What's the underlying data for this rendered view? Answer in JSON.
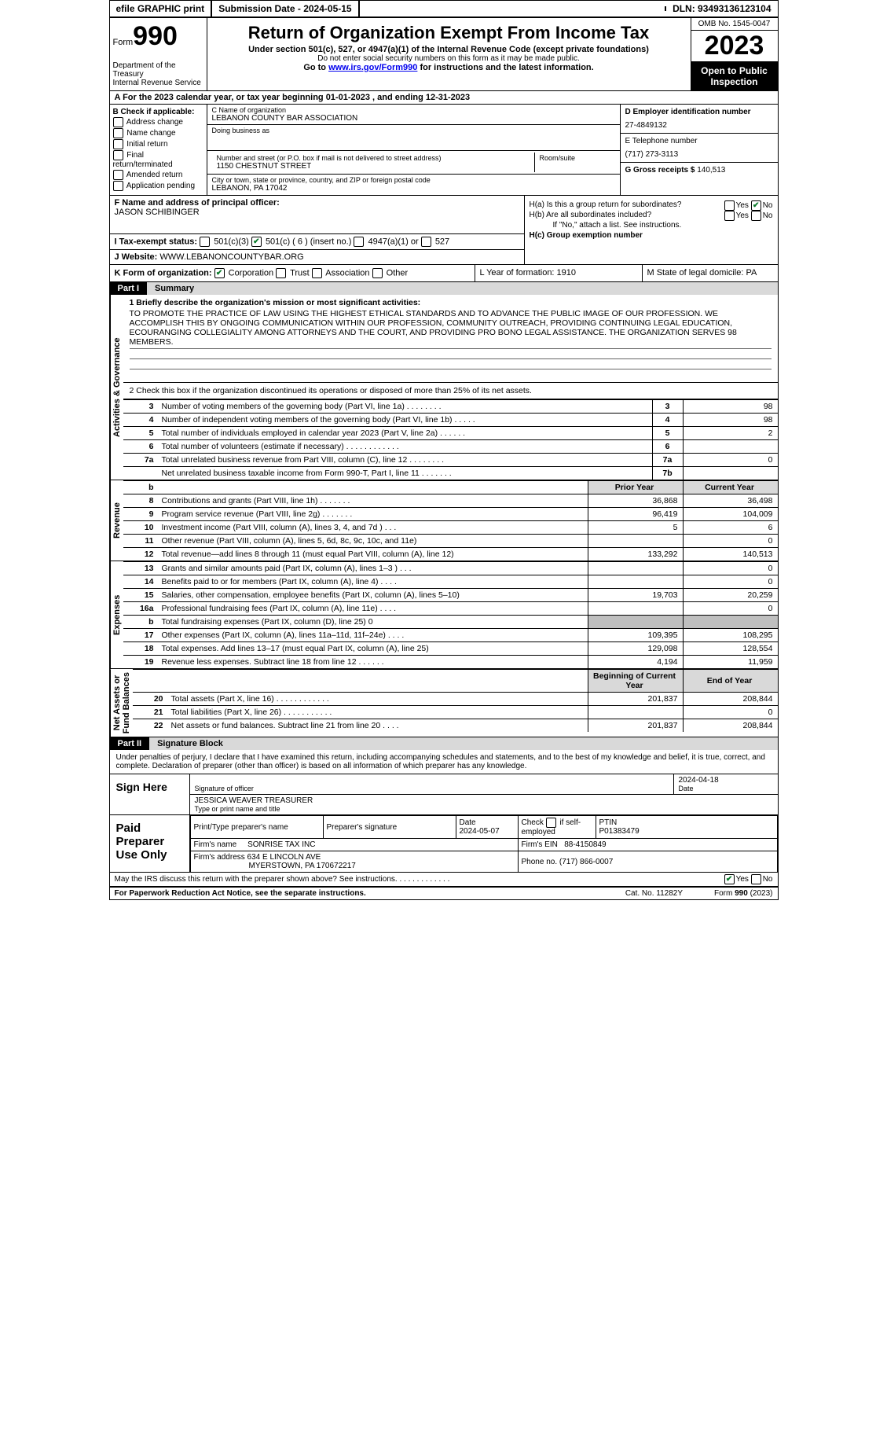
{
  "top": {
    "efile": "efile GRAPHIC print",
    "sub_label": "Submission Date - 2024-05-15",
    "dln": "DLN: 93493136123104"
  },
  "header": {
    "form_word": "Form",
    "form_num": "990",
    "dept": "Department of the Treasury\nInternal Revenue Service",
    "title": "Return of Organization Exempt From Income Tax",
    "sub": "Under section 501(c), 527, or 4947(a)(1) of the Internal Revenue Code (except private foundations)",
    "sub2": "Do not enter social security numbers on this form as it may be made public.",
    "sub3_pre": "Go to ",
    "sub3_link": "www.irs.gov/Form990",
    "sub3_post": " for instructions and the latest information.",
    "omb": "OMB No. 1545-0047",
    "year": "2023",
    "inspection": "Open to Public Inspection"
  },
  "line_a": "A  For the 2023 calendar year, or tax year beginning 01-01-2023    , and ending 12-31-2023",
  "col_b": {
    "header": "B Check if applicable:",
    "items": [
      "Address change",
      "Name change",
      "Initial return",
      "Final return/terminated",
      "Amended return",
      "Application pending"
    ]
  },
  "col_c": {
    "name_lbl": "C Name of organization",
    "name": "LEBANON COUNTY BAR ASSOCIATION",
    "dba_lbl": "Doing business as",
    "street_lbl": "Number and street (or P.O. box if mail is not delivered to street address)",
    "street": "1150 CHESTNUT STREET",
    "room_lbl": "Room/suite",
    "city_lbl": "City or town, state or province, country, and ZIP or foreign postal code",
    "city": "LEBANON, PA   17042"
  },
  "col_de": {
    "ein_lbl": "D Employer identification number",
    "ein": "27-4849132",
    "phone_lbl": "E Telephone number",
    "phone": "(717) 273-3113",
    "gross_lbl": "G Gross receipts $",
    "gross": "140,513"
  },
  "f": {
    "lbl": "F  Name and address of principal officer:",
    "name": "JASON SCHIBINGER"
  },
  "tax_status": {
    "lbl": "I   Tax-exempt status:",
    "opt1": "501(c)(3)",
    "opt2": "501(c) ( 6 ) (insert no.)",
    "opt3": "4947(a)(1) or",
    "opt4": "527"
  },
  "website": {
    "lbl": "J   Website:",
    "val": "WWW.LEBANONCOUNTYBAR.ORG"
  },
  "h": {
    "ha": "H(a)  Is this a group return for subordinates?",
    "hb": "H(b)  Are all subordinates included?",
    "hb_note": "If \"No,\" attach a list. See instructions.",
    "hc": "H(c)  Group exemption number",
    "yes": "Yes",
    "no": "No"
  },
  "k": {
    "lbl": "K Form of organization:",
    "opts": [
      "Corporation",
      "Trust",
      "Association",
      "Other"
    ]
  },
  "l": "L Year of formation: 1910",
  "m": "M State of legal domicile: PA",
  "part1": {
    "label": "Part I",
    "title": "Summary"
  },
  "vert": {
    "ag": "Activities & Governance",
    "rev": "Revenue",
    "exp": "Expenses",
    "net": "Net Assets or\nFund Balances"
  },
  "mission": {
    "lbl": "1  Briefly describe the organization's mission or most significant activities:",
    "text": "TO PROMOTE THE PRACTICE OF LAW USING THE HIGHEST ETHICAL STANDARDS AND TO ADVANCE THE PUBLIC IMAGE OF OUR PROFESSION. WE ACCOMPLISH THIS BY ONGOING COMMUNICATION WITHIN OUR PROFESSION, COMMUNITY OUTREACH, PROVIDING CONTINUING LEGAL EDUCATION, ECOURANGING COLLEGIALITY AMONG ATTORNEYS AND THE COURT, AND PROVIDING PRO BONO LEGAL ASSISTANCE. THE ORGANIZATION SERVES 98 MEMBERS."
  },
  "line2": "2   Check this box         if the organization discontinued its operations or disposed of more than 25% of its net assets.",
  "ag_rows": [
    {
      "n": "3",
      "lbl": "Number of voting members of the governing body (Part VI, line 1a)   .    .    .    .    .    .    .    .",
      "box": "3",
      "val": "98"
    },
    {
      "n": "4",
      "lbl": "Number of independent voting members of the governing body (Part VI, line 1b)   .    .    .    .    .",
      "box": "4",
      "val": "98"
    },
    {
      "n": "5",
      "lbl": "Total number of individuals employed in calendar year 2023 (Part V, line 2a)   .    .    .    .    .    .",
      "box": "5",
      "val": "2"
    },
    {
      "n": "6",
      "lbl": "Total number of volunteers (estimate if necessary)    .    .    .    .    .    .    .    .    .    .    .    .",
      "box": "6",
      "val": ""
    },
    {
      "n": "7a",
      "lbl": "Total unrelated business revenue from Part VIII, column (C), line 12    .    .    .    .    .    .    .    .",
      "box": "7a",
      "val": "0"
    },
    {
      "n": "",
      "lbl": "Net unrelated business taxable income from Form 990-T, Part I, line 11   .    .    .    .    .    .    .",
      "box": "7b",
      "val": ""
    }
  ],
  "col_headers": {
    "b": "b",
    "prior": "Prior Year",
    "current": "Current Year"
  },
  "rev_rows": [
    {
      "n": "8",
      "lbl": "Contributions and grants (Part VIII, line 1h)   .    .    .    .    .    .    .",
      "py": "36,868",
      "cy": "36,498"
    },
    {
      "n": "9",
      "lbl": "Program service revenue (Part VIII, line 2g)    .    .    .    .    .    .    .",
      "py": "96,419",
      "cy": "104,009"
    },
    {
      "n": "10",
      "lbl": "Investment income (Part VIII, column (A), lines 3, 4, and 7d )   .    .    .",
      "py": "5",
      "cy": "6"
    },
    {
      "n": "11",
      "lbl": "Other revenue (Part VIII, column (A), lines 5, 6d, 8c, 9c, 10c, and 11e)",
      "py": "",
      "cy": "0"
    },
    {
      "n": "12",
      "lbl": "Total revenue—add lines 8 through 11 (must equal Part VIII, column (A), line 12)",
      "py": "133,292",
      "cy": "140,513"
    }
  ],
  "exp_rows": [
    {
      "n": "13",
      "lbl": "Grants and similar amounts paid (Part IX, column (A), lines 1–3 )   .    .    .",
      "py": "",
      "cy": "0"
    },
    {
      "n": "14",
      "lbl": "Benefits paid to or for members (Part IX, column (A), line 4)   .    .    .    .",
      "py": "",
      "cy": "0"
    },
    {
      "n": "15",
      "lbl": "Salaries, other compensation, employee benefits (Part IX, column (A), lines 5–10)",
      "py": "19,703",
      "cy": "20,259"
    },
    {
      "n": "16a",
      "lbl": "Professional fundraising fees (Part IX, column (A), line 11e)    .    .    .    .",
      "py": "",
      "cy": "0"
    },
    {
      "n": "b",
      "lbl": "Total fundraising expenses (Part IX, column (D), line 25) 0",
      "py": "SHADE",
      "cy": "SHADE"
    },
    {
      "n": "17",
      "lbl": "Other expenses (Part IX, column (A), lines 11a–11d, 11f–24e)   .    .    .    .",
      "py": "109,395",
      "cy": "108,295"
    },
    {
      "n": "18",
      "lbl": "Total expenses. Add lines 13–17 (must equal Part IX, column (A), line 25)",
      "py": "129,098",
      "cy": "128,554"
    },
    {
      "n": "19",
      "lbl": "Revenue less expenses. Subtract line 18 from line 12    .    .    .    .    .    .",
      "py": "4,194",
      "cy": "11,959"
    }
  ],
  "net_headers": {
    "begin": "Beginning of Current Year",
    "end": "End of Year"
  },
  "net_rows": [
    {
      "n": "20",
      "lbl": "Total assets (Part X, line 16)   .    .    .    .    .    .    .    .    .    .    .    .",
      "py": "201,837",
      "cy": "208,844"
    },
    {
      "n": "21",
      "lbl": "Total liabilities (Part X, line 26)   .    .    .    .    .    .    .    .    .    .    .",
      "py": "",
      "cy": "0"
    },
    {
      "n": "22",
      "lbl": "Net assets or fund balances. Subtract line 21 from line 20    .    .    .    .",
      "py": "201,837",
      "cy": "208,844"
    }
  ],
  "part2": {
    "label": "Part II",
    "title": "Signature Block"
  },
  "sig_text": "Under penalties of perjury, I declare that I have examined this return, including accompanying schedules and statements, and to the best of my knowledge and belief, it is true, correct, and complete. Declaration of preparer (other than officer) is based on all information of which preparer has any knowledge.",
  "sign_here": "Sign Here",
  "sig": {
    "date": "2024-04-18",
    "sig_lbl": "Signature of officer",
    "date_lbl": "Date",
    "name": "JESSICA WEAVER  TREASURER",
    "name_lbl": "Type or print name and title"
  },
  "paid": {
    "label": "Paid Preparer Use Only",
    "h1": "Print/Type preparer's name",
    "h2": "Preparer's signature",
    "h3": "Date",
    "h3v": "2024-05-07",
    "h4": "Check        if self-employed",
    "h5": "PTIN",
    "h5v": "P01383479",
    "firm_lbl": "Firm's name",
    "firm": "SONRISE TAX INC",
    "ein_lbl": "Firm's EIN",
    "ein": "88-4150849",
    "addr_lbl": "Firm's address",
    "addr": "634 E LINCOLN AVE",
    "addr2": "MYERSTOWN, PA  170672217",
    "phone_lbl": "Phone no.",
    "phone": "(717) 866-0007"
  },
  "discuss": "May the IRS discuss this return with the preparer shown above? See instructions.    .    .    .    .    .    .    .    .    .    .    .    .",
  "footer": {
    "left": "For Paperwork Reduction Act Notice, see the separate instructions.",
    "mid": "Cat. No. 11282Y",
    "right": "Form 990 (2023)"
  }
}
